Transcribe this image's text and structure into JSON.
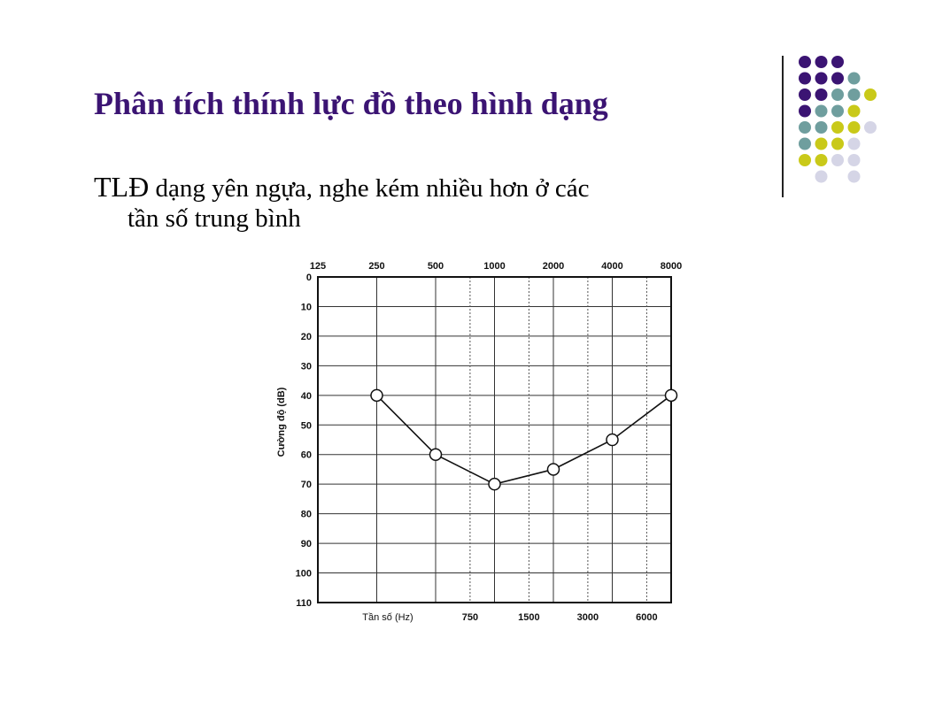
{
  "slide": {
    "title": "Phân tích thính lực đồ theo hình dạng",
    "bullet_lead": "TLĐ",
    "bullet_rest_1": " dạng yên ngựa, nghe kém nhiều hơn ở các",
    "bullet_rest_2": "tần số trung bình"
  },
  "decor": {
    "colors": {
      "purple": "#3b1473",
      "teal": "#6f9e9e",
      "yellow": "#c9c919",
      "lavender": "#d5d5e6"
    },
    "dot_rows": [
      [
        "purple",
        "purple",
        "purple",
        null,
        null,
        null
      ],
      [
        "purple",
        "purple",
        "purple",
        "teal",
        null,
        null
      ],
      [
        "purple",
        "purple",
        "teal",
        "teal",
        "yellow",
        null
      ],
      [
        "purple",
        "teal",
        "teal",
        "yellow",
        null,
        null
      ],
      [
        "teal",
        "teal",
        "yellow",
        "yellow",
        "lavender",
        null
      ],
      [
        "teal",
        "yellow",
        "yellow",
        "lavender",
        null,
        null
      ],
      [
        "yellow",
        "yellow",
        "lavender",
        "lavender",
        null,
        null
      ],
      [
        null,
        "lavender",
        null,
        "lavender",
        null,
        null
      ]
    ]
  },
  "chart_data": {
    "type": "line",
    "top_ticks": [
      "125",
      "250",
      "500",
      "1000",
      "2000",
      "4000",
      "8000"
    ],
    "bottom_ticks": [
      "750",
      "1500",
      "3000",
      "6000"
    ],
    "xlabel": "Tần số (Hz)",
    "ylabel": "Cường độ (dB)",
    "y_ticks": [
      "0",
      "10",
      "20",
      "30",
      "40",
      "50",
      "60",
      "70",
      "80",
      "90",
      "100",
      "110"
    ],
    "ylim": [
      0,
      110
    ],
    "y_inverted": true,
    "grid": true,
    "marker": "open-circle",
    "points": [
      {
        "x": 250,
        "y": 40
      },
      {
        "x": 500,
        "y": 60
      },
      {
        "x": 1000,
        "y": 70
      },
      {
        "x": 2000,
        "y": 65
      },
      {
        "x": 4000,
        "y": 55
      },
      {
        "x": 8000,
        "y": 40
      }
    ]
  }
}
